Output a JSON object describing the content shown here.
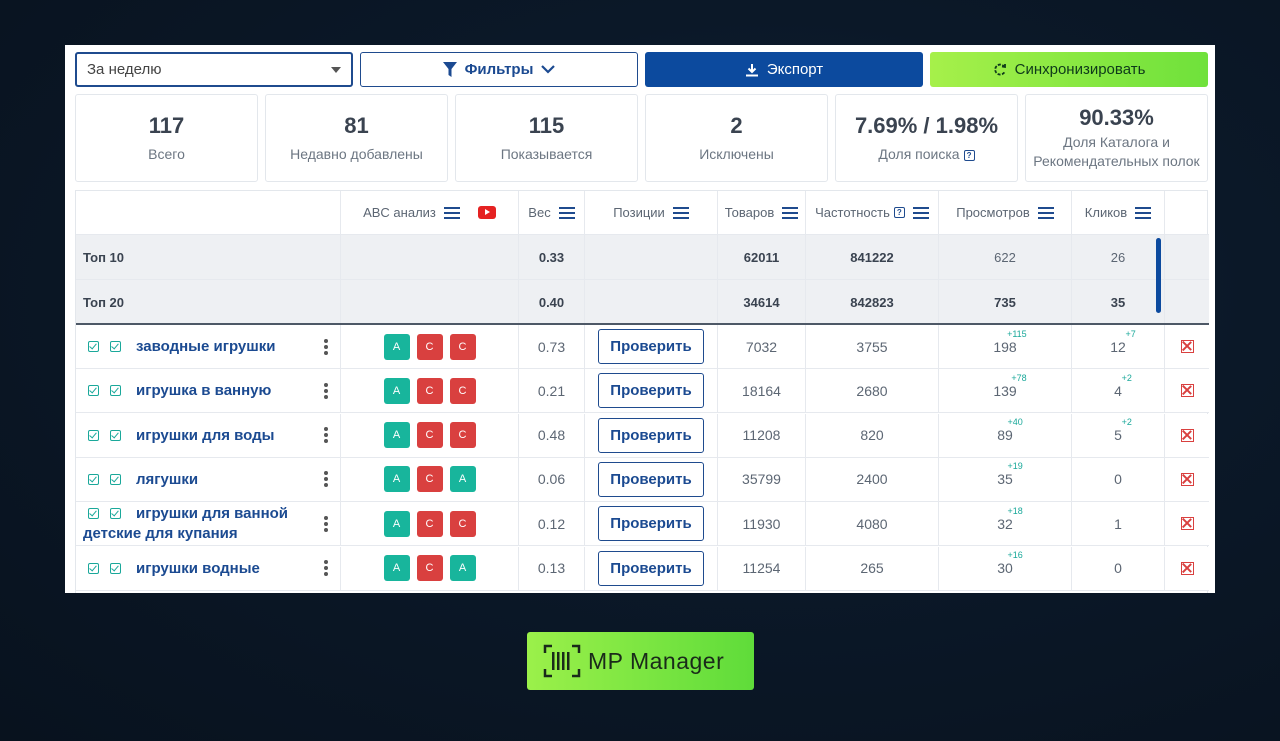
{
  "toolbar": {
    "period_value": "За неделю",
    "filters_label": "Фильтры",
    "export_label": "Экспорт",
    "sync_label": "Синхронизировать"
  },
  "stats": [
    {
      "value": "117",
      "label": "Всего"
    },
    {
      "value": "81",
      "label": "Недавно добавлены"
    },
    {
      "value": "115",
      "label": "Показывается"
    },
    {
      "value": "2",
      "label": "Исключены"
    },
    {
      "value": "7.69% / 1.98%",
      "label": "Доля поиска"
    },
    {
      "value": "90.33%",
      "label": "Доля Каталога и Рекомендательных полок"
    }
  ],
  "columns": {
    "abc": "ABC анализ",
    "weight": "Вес",
    "positions": "Позиции",
    "products": "Товаров",
    "frequency": "Частотность",
    "views": "Просмотров",
    "clicks": "Кликов"
  },
  "summary": [
    {
      "name": "Топ 10",
      "weight": "0.33",
      "products": "62011",
      "frequency": "841222",
      "views": "622",
      "clicks": "26"
    },
    {
      "name": "Топ 20",
      "weight": "0.40",
      "products": "34614",
      "frequency": "842823",
      "views": "735",
      "clicks": "35"
    }
  ],
  "rows": [
    {
      "keyword": "заводные игрушки",
      "abc": [
        "A",
        "C",
        "C"
      ],
      "weight": "0.73",
      "check": "Проверить",
      "products": "7032",
      "frequency": "3755",
      "views": "198",
      "views_delta": "+115",
      "clicks": "12",
      "clicks_delta": "+7"
    },
    {
      "keyword": "игрушка в ванную",
      "abc": [
        "A",
        "C",
        "C"
      ],
      "weight": "0.21",
      "check": "Проверить",
      "products": "18164",
      "frequency": "2680",
      "views": "139",
      "views_delta": "+78",
      "clicks": "4",
      "clicks_delta": "+2"
    },
    {
      "keyword": "игрушки для воды",
      "abc": [
        "A",
        "C",
        "C"
      ],
      "weight": "0.48",
      "check": "Проверить",
      "products": "11208",
      "frequency": "820",
      "views": "89",
      "views_delta": "+40",
      "clicks": "5",
      "clicks_delta": "+2"
    },
    {
      "keyword": "лягушки",
      "abc": [
        "A",
        "C",
        "A"
      ],
      "weight": "0.06",
      "check": "Проверить",
      "products": "35799",
      "frequency": "2400",
      "views": "35",
      "views_delta": "+19",
      "clicks": "0",
      "clicks_delta": ""
    },
    {
      "keyword": "игрушки для ванной",
      "keyword2": "детские для купания",
      "abc": [
        "A",
        "C",
        "C"
      ],
      "weight": "0.12",
      "check": "Проверить",
      "products": "11930",
      "frequency": "4080",
      "views": "32",
      "views_delta": "+18",
      "clicks": "1",
      "clicks_delta": ""
    },
    {
      "keyword": "игрушки водные",
      "abc": [
        "A",
        "C",
        "A"
      ],
      "weight": "0.13",
      "check": "Проверить",
      "products": "11254",
      "frequency": "265",
      "views": "30",
      "views_delta": "+16",
      "clicks": "0",
      "clicks_delta": ""
    }
  ],
  "brand": {
    "name": "MP Manager"
  },
  "colors": {
    "primary": "#0c4a9e",
    "accent_green": "#7de540",
    "badge_a": "#18b59c",
    "badge_c": "#d9403f"
  }
}
